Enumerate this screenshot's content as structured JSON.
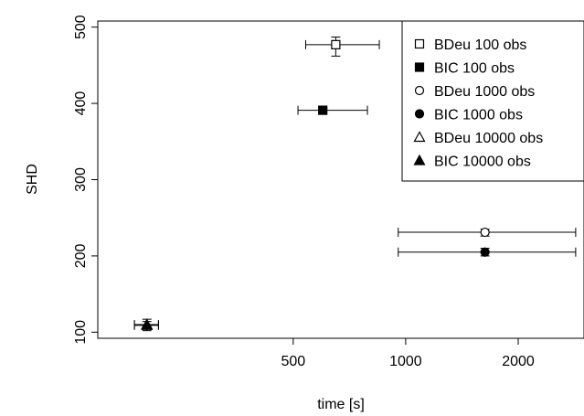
{
  "chart_data": {
    "type": "scatter",
    "title": "",
    "xlabel": "time [s]",
    "ylabel": "SHD",
    "x_scale": "log",
    "x_ticks": [
      500,
      1000,
      2000
    ],
    "y_ticks": [
      100,
      200,
      300,
      400,
      500
    ],
    "xlim": [
      150,
      3000
    ],
    "ylim": [
      92,
      508
    ],
    "grid": false,
    "legend_position": "top-right",
    "error_bars": true,
    "series": [
      {
        "name": "BDeu 100 obs",
        "marker": "open-square",
        "points": [
          {
            "x": 650,
            "y": 477,
            "x_low": 540,
            "x_high": 850,
            "y_low": 462,
            "y_high": 487
          }
        ]
      },
      {
        "name": "BIC 100 obs",
        "marker": "filled-square",
        "points": [
          {
            "x": 600,
            "y": 391,
            "x_low": 515,
            "x_high": 790,
            "y_low": 388,
            "y_high": 394
          }
        ]
      },
      {
        "name": "BDeu 1000 obs",
        "marker": "open-circle",
        "points": [
          {
            "x": 1630,
            "y": 231,
            "x_low": 955,
            "x_high": 2850,
            "y_low": 226,
            "y_high": 235
          }
        ]
      },
      {
        "name": "BIC 1000 obs",
        "marker": "filled-circle",
        "points": [
          {
            "x": 1630,
            "y": 205,
            "x_low": 955,
            "x_high": 2850,
            "y_low": 200,
            "y_high": 210
          }
        ]
      },
      {
        "name": "BDeu 10000 obs",
        "marker": "open-triangle",
        "points": [
          {
            "x": 203,
            "y": 110,
            "x_low": 188,
            "x_high": 218,
            "y_low": 102,
            "y_high": 117
          }
        ]
      },
      {
        "name": "BIC 10000 obs",
        "marker": "filled-triangle",
        "points": [
          {
            "x": 203,
            "y": 109,
            "x_low": 188,
            "x_high": 218,
            "y_low": 104,
            "y_high": 114
          }
        ]
      }
    ]
  }
}
